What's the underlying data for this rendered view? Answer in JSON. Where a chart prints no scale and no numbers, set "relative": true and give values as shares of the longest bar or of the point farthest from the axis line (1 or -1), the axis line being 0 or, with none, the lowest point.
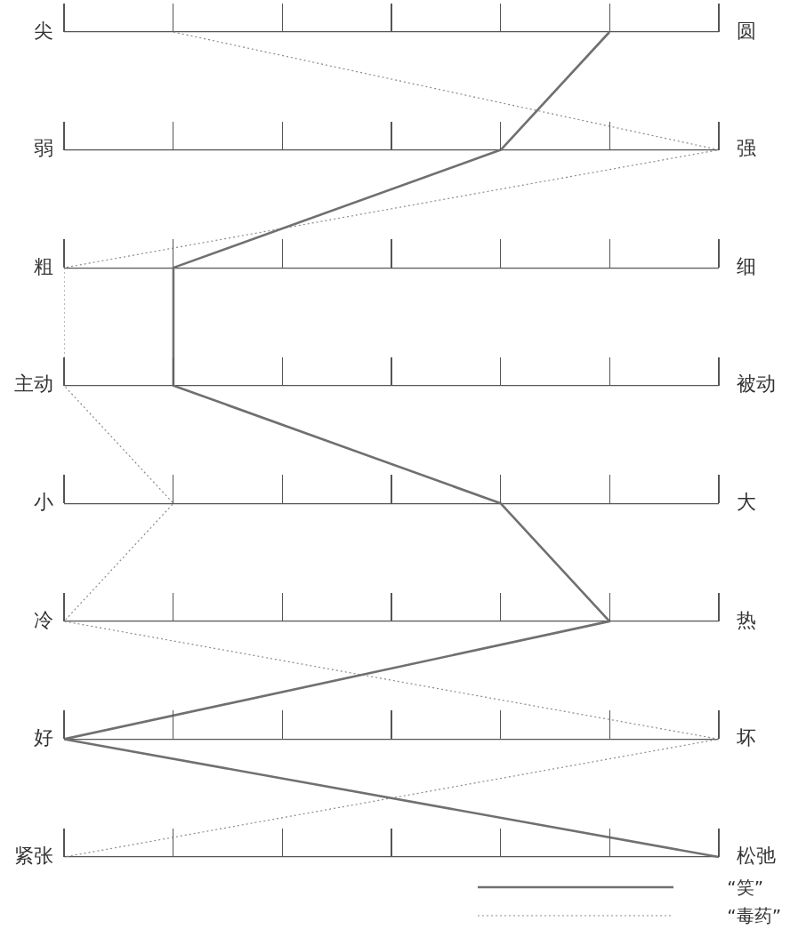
{
  "chart_data": {
    "type": "line",
    "orientation": "horizontal",
    "relative": true,
    "categories": [
      "尖",
      "弱",
      "粗",
      "主动",
      "小",
      "冷",
      "好",
      "紧张"
    ],
    "y2_categories": [
      "圆",
      "强",
      "细",
      "被动",
      "大",
      "热",
      "坏",
      "松弛"
    ],
    "series": [
      {
        "name": "“笑”",
        "color": "#707070",
        "line_style": "solid",
        "values": [
          0.833,
          0.667,
          0.167,
          0.167,
          0.667,
          0.833,
          0,
          1
        ]
      },
      {
        "name": "“毒药”",
        "color": "#8a8a8a",
        "line_style": "dotted",
        "values": [
          0.167,
          1,
          0,
          0,
          0.167,
          0,
          1,
          0
        ]
      }
    ],
    "marker": "none",
    "grid": "y",
    "legend": "bottom right"
  }
}
